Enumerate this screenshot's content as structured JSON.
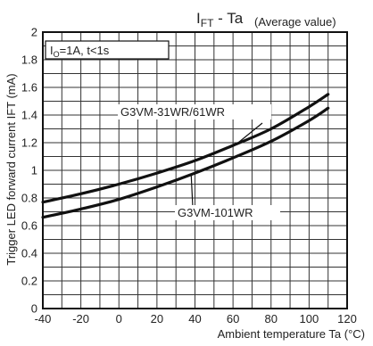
{
  "chart_data": {
    "type": "line",
    "title_main": "I",
    "title_sub": "FT",
    "title_rest": " - Ta",
    "subtitle": "(Average value)",
    "condition": {
      "prefix": "I",
      "sub": "O",
      "rest": "=1A, t<1s"
    },
    "xlabel": "Ambient temperature Ta (°C)",
    "ylabel": "Trigger LED forward current IFT (mA)",
    "xlim": [
      -40,
      120
    ],
    "ylim": [
      0,
      2
    ],
    "xticks": [
      -40,
      -20,
      0,
      20,
      40,
      60,
      80,
      100,
      120
    ],
    "yticks": [
      0,
      0.2,
      0.4,
      0.6,
      0.8,
      1,
      1.2,
      1.4,
      1.6,
      1.8,
      2
    ],
    "grid": true,
    "series": [
      {
        "name": "G3VM-31WR/61WR",
        "x": [
          -40,
          -20,
          0,
          20,
          40,
          60,
          80,
          100,
          110
        ],
        "y": [
          0.77,
          0.83,
          0.9,
          0.98,
          1.07,
          1.18,
          1.3,
          1.46,
          1.55
        ]
      },
      {
        "name": "G3VM-101WR",
        "x": [
          -40,
          -20,
          0,
          20,
          40,
          60,
          80,
          100,
          110
        ],
        "y": [
          0.66,
          0.72,
          0.79,
          0.88,
          0.98,
          1.09,
          1.21,
          1.36,
          1.45
        ]
      }
    ]
  }
}
